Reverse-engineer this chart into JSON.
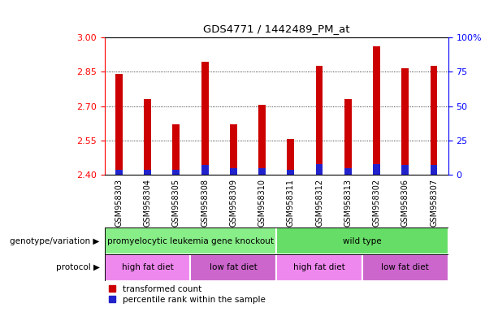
{
  "title": "GDS4771 / 1442489_PM_at",
  "samples": [
    "GSM958303",
    "GSM958304",
    "GSM958305",
    "GSM958308",
    "GSM958309",
    "GSM958310",
    "GSM958311",
    "GSM958312",
    "GSM958313",
    "GSM958302",
    "GSM958306",
    "GSM958307"
  ],
  "transformed_count": [
    2.84,
    2.73,
    2.62,
    2.895,
    2.62,
    2.705,
    2.555,
    2.875,
    2.73,
    2.96,
    2.865,
    2.875
  ],
  "percentile_rank_pct": [
    3.5,
    3.5,
    3.5,
    7.0,
    5.0,
    5.0,
    3.5,
    8.0,
    5.0,
    8.0,
    7.0,
    7.0
  ],
  "base_value": 2.4,
  "ylim_left": [
    2.4,
    3.0
  ],
  "yticks_left": [
    2.4,
    2.55,
    2.7,
    2.85,
    3.0
  ],
  "yticks_right": [
    0,
    25,
    50,
    75,
    100
  ],
  "ylim_right": [
    0,
    100
  ],
  "bar_color_red": "#cc0000",
  "bar_color_blue": "#2222cc",
  "geno_groups": [
    {
      "label": "promyelocytic leukemia gene knockout",
      "start": 0,
      "end": 6,
      "color": "#88ee88"
    },
    {
      "label": "wild type",
      "start": 6,
      "end": 12,
      "color": "#66dd66"
    }
  ],
  "prot_groups": [
    {
      "label": "high fat diet",
      "start": 0,
      "end": 3,
      "color": "#ee88ee"
    },
    {
      "label": "low fat diet",
      "start": 3,
      "end": 6,
      "color": "#cc66cc"
    },
    {
      "label": "high fat diet",
      "start": 6,
      "end": 9,
      "color": "#ee88ee"
    },
    {
      "label": "low fat diet",
      "start": 9,
      "end": 12,
      "color": "#cc66cc"
    }
  ],
  "legend_red_label": "transformed count",
  "legend_blue_label": "percentile rank within the sample",
  "grid_dotted_values": [
    2.55,
    2.7,
    2.85
  ],
  "bar_width": 0.25
}
